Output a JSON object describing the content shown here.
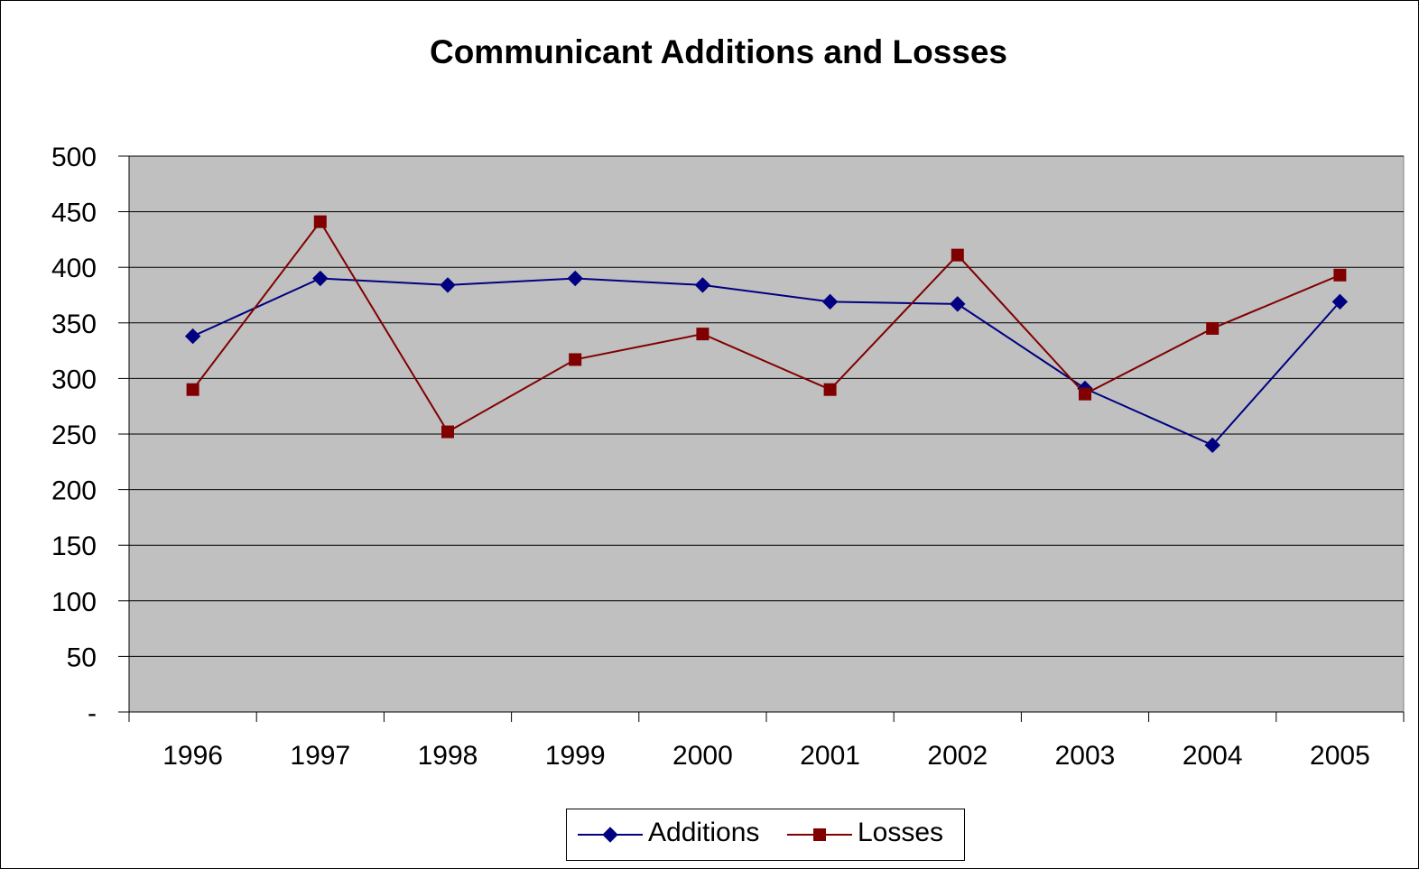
{
  "chart_data": {
    "type": "line",
    "title": "Communicant Additions and Losses",
    "xlabel": "",
    "ylabel": "",
    "categories": [
      "1996",
      "1997",
      "1998",
      "1999",
      "2000",
      "2001",
      "2002",
      "2003",
      "2004",
      "2005"
    ],
    "series": [
      {
        "name": "Additions",
        "color": "#000080",
        "marker": "diamond",
        "values": [
          338,
          390,
          384,
          390,
          384,
          369,
          367,
          291,
          240,
          369
        ]
      },
      {
        "name": "Losses",
        "color": "#800000",
        "marker": "square",
        "values": [
          290,
          441,
          252,
          317,
          340,
          290,
          411,
          286,
          345,
          393
        ]
      }
    ],
    "ylim": [
      0,
      500
    ],
    "yticks": [
      0,
      50,
      100,
      150,
      200,
      250,
      300,
      350,
      400,
      450,
      500
    ],
    "ytick_labels": [
      "-",
      "50",
      "100",
      "150",
      "200",
      "250",
      "300",
      "350",
      "400",
      "450",
      "500"
    ],
    "grid": true,
    "plot_background": "#c0c0c0",
    "legend_position": "bottom"
  }
}
